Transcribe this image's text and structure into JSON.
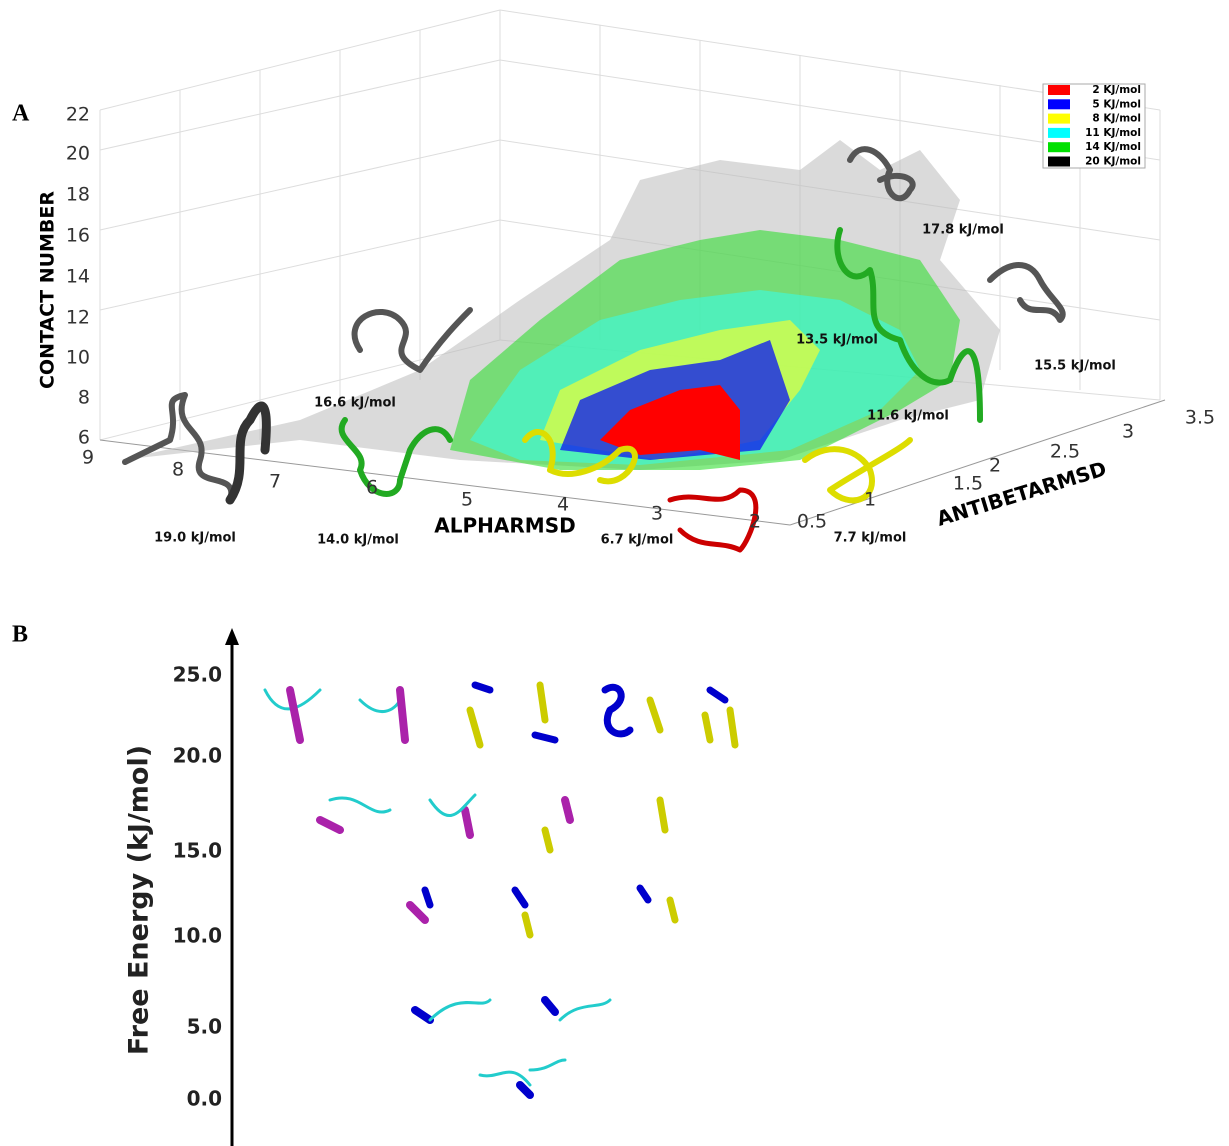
{
  "panel_a": {
    "label": "A",
    "z_axis": {
      "title": "CONTACT NUMBER",
      "ticks": [
        "22",
        "20",
        "18",
        "16",
        "14",
        "12",
        "10",
        "8",
        "6"
      ]
    },
    "x_axis": {
      "title": "ALPHARMSD",
      "ticks": [
        "9",
        "8",
        "7",
        "6",
        "5",
        "4",
        "3",
        "2"
      ]
    },
    "y_axis": {
      "title": "ANTIBETARMSD",
      "ticks": [
        "0.5",
        "1",
        "1.5",
        "2",
        "2.5",
        "3",
        "3.5"
      ]
    },
    "legend": [
      {
        "label": "2 KJ/mol",
        "color": "#ff0000"
      },
      {
        "label": "5 KJ/mol",
        "color": "#0000ff"
      },
      {
        "label": "8 KJ/mol",
        "color": "#ffff00"
      },
      {
        "label": "11 KJ/mol",
        "color": "#00ffff"
      },
      {
        "label": "14 KJ/mol",
        "color": "#00e000"
      },
      {
        "label": "20 KJ/mol",
        "color": "#000000"
      }
    ],
    "annotations": [
      "19.0 kJ/mol",
      "14.0 kJ/mol",
      "16.6 kJ/mol",
      "6.7 kJ/mol",
      "7.7 kJ/mol",
      "11.6 kJ/mol",
      "13.5 kJ/mol",
      "15.5 kJ/mol",
      "17.8 kJ/mol"
    ]
  },
  "panel_b": {
    "label": "B",
    "axis_title": "Free Energy (kJ/mol)",
    "ticks": [
      "25.0",
      "20.0",
      "15.0",
      "10.0",
      "5.0",
      "0.0"
    ]
  }
}
